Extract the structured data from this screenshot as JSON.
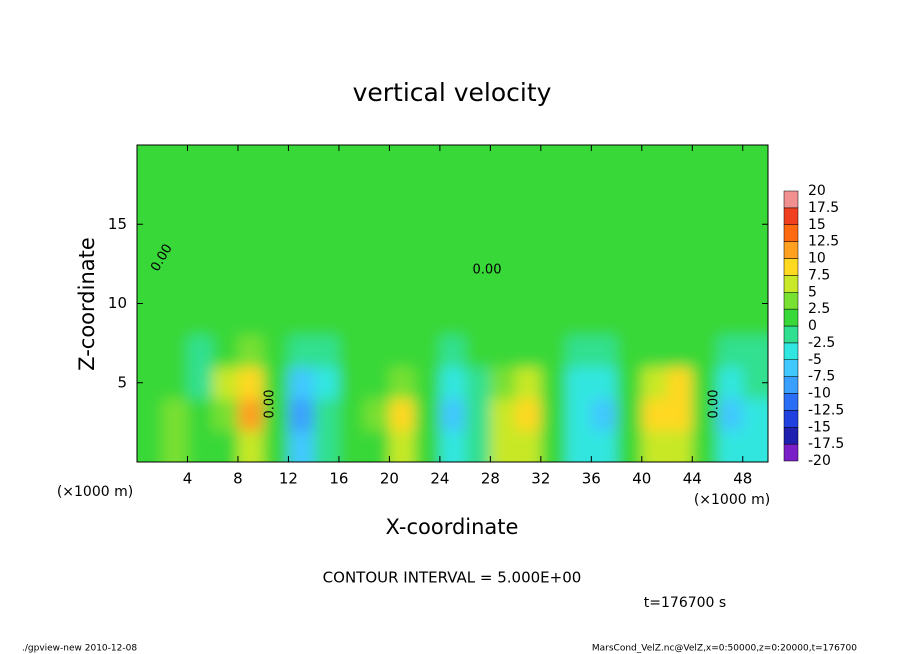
{
  "chart_data": {
    "type": "heatmap",
    "title": "vertical velocity",
    "x_label": "X-coordinate",
    "y_label": "Z-coordinate",
    "x_unit": "(×1000 m)",
    "y_unit": "(×1000 m)",
    "xlim": [
      0,
      50
    ],
    "ylim": [
      0,
      20
    ],
    "xticks": [
      4,
      8,
      12,
      16,
      20,
      24,
      28,
      32,
      36,
      40,
      44,
      48
    ],
    "yticks": [
      5,
      10,
      15
    ],
    "x": [
      1,
      3,
      5,
      7,
      9,
      11,
      13,
      15,
      17,
      19,
      21,
      23,
      25,
      27,
      29,
      31,
      33,
      35,
      37,
      39,
      41,
      43,
      45,
      47,
      49
    ],
    "y": [
      1,
      3,
      5,
      7,
      9,
      11,
      13,
      15,
      17,
      19
    ],
    "z": [
      [
        0.5,
        3,
        0.5,
        2,
        5,
        0,
        -6,
        -2,
        0,
        2,
        6,
        0,
        -5,
        -1,
        5,
        7,
        1,
        -4,
        -5,
        0,
        5,
        6,
        0,
        -5,
        -3
      ],
      [
        0.5,
        3,
        0.5,
        4,
        10,
        1,
        -8,
        -2,
        0,
        3,
        8,
        0,
        -7,
        -2,
        7,
        9,
        2,
        -5,
        -6,
        1,
        8,
        9,
        1,
        -7,
        -4
      ],
      [
        0,
        1,
        -2,
        5,
        9,
        1,
        -6,
        -3,
        0,
        2,
        4,
        0,
        -3,
        -1,
        4,
        5,
        1,
        -3,
        -3,
        1,
        7,
        8,
        0,
        -5,
        -2
      ],
      [
        1,
        0,
        -1,
        2,
        3,
        0,
        -2,
        -1,
        1,
        1,
        1,
        0,
        -1,
        0,
        1,
        1,
        0,
        -1,
        -1,
        1,
        2,
        2,
        0,
        -2,
        -1
      ],
      [
        1,
        1,
        0.5,
        1,
        1,
        1,
        0.5,
        1,
        1,
        1,
        1,
        1,
        0.5,
        1,
        1,
        1,
        1,
        0.5,
        1,
        1,
        1,
        1,
        1,
        0.5,
        1
      ],
      [
        0.5,
        0.5,
        1,
        0.5,
        0.5,
        0.5,
        1,
        0.5,
        0.5,
        0.5,
        0.5,
        1,
        0.5,
        0.5,
        0.5,
        0.5,
        1,
        0.5,
        0.5,
        0.5,
        0.5,
        0.5,
        1,
        0.5,
        0.5
      ],
      [
        0.5,
        0.5,
        0.5,
        0.5,
        0.5,
        0.5,
        0.5,
        0.5,
        0.5,
        0.5,
        0.5,
        0.5,
        0.5,
        0.5,
        0.5,
        0.5,
        0.5,
        0.5,
        0.5,
        0.5,
        0.5,
        0.5,
        0.5,
        0.5,
        0.5
      ],
      [
        0.5,
        0.5,
        0.5,
        0.5,
        0.5,
        0.5,
        0.5,
        0.5,
        0.5,
        0.5,
        0.5,
        0.5,
        0.5,
        0.5,
        0.5,
        0.5,
        0.5,
        0.5,
        0.5,
        0.5,
        0.5,
        0.5,
        0.5,
        0.5,
        0.5
      ],
      [
        0.5,
        0.5,
        0.5,
        0.5,
        0.5,
        0.5,
        0.5,
        0.5,
        0.5,
        0.5,
        0.5,
        0.5,
        0.5,
        0.5,
        0.5,
        0.5,
        0.5,
        0.5,
        0.5,
        0.5,
        0.5,
        0.5,
        0.5,
        0.5,
        0.5
      ],
      [
        0.5,
        0.5,
        0.5,
        0.5,
        0.5,
        0.5,
        0.5,
        0.5,
        0.5,
        0.5,
        0.5,
        0.5,
        0.5,
        0.5,
        0.5,
        0.5,
        0.5,
        0.5,
        0.5,
        0.5,
        0.5,
        0.5,
        0.5,
        0.5,
        0.5
      ]
    ],
    "colorbar": {
      "levels": [
        -20,
        -17.5,
        -15,
        -12.5,
        -10,
        -7.5,
        -5,
        -2.5,
        0,
        2.5,
        5,
        7.5,
        10,
        12.5,
        15,
        17.5,
        20
      ],
      "colors": [
        "#7a1fc8",
        "#1f1fb0",
        "#2040e0",
        "#2a6ef5",
        "#3aa0ff",
        "#40c8ff",
        "#30e6e0",
        "#30e090",
        "#38d838",
        "#78e030",
        "#c8e828",
        "#ffd820",
        "#ffa020",
        "#ff6a10",
        "#f04020",
        "#f09090"
      ]
    },
    "contour_label": "0.00",
    "contour_interval": "CONTOUR INTERVAL = 5.000E+00",
    "time_label": "t=176700 s",
    "footer_left": "./gpview-new  2010-12-08",
    "footer_right": "MarsCond_VelZ.nc@VelZ,x=0:50000,z=0:20000,t=176700"
  }
}
